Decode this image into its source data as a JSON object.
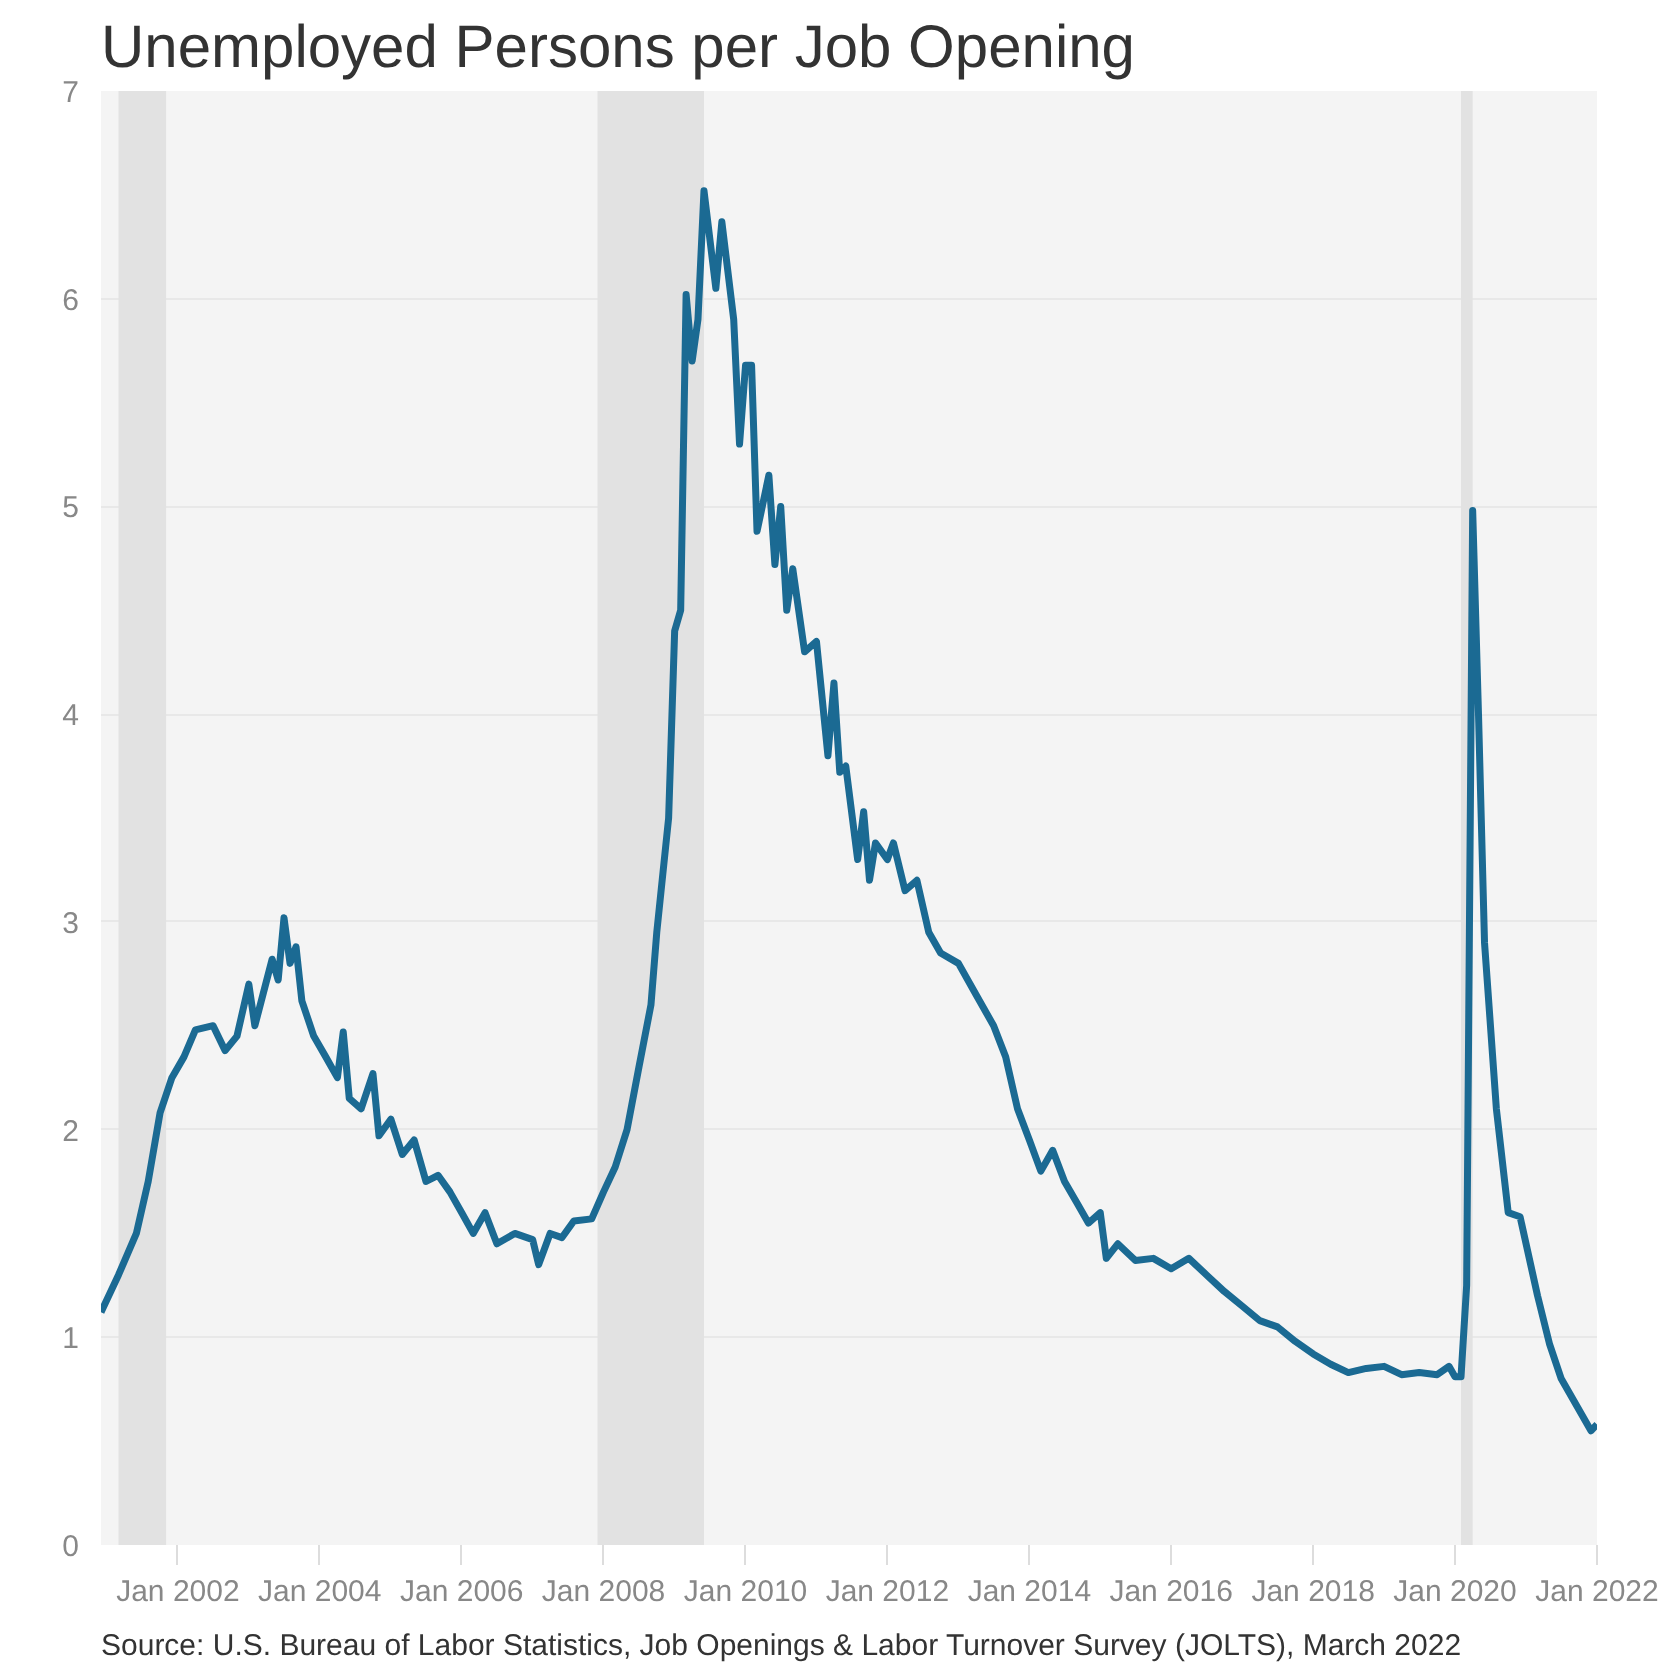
{
  "chart_data": {
    "type": "line",
    "title": "Unemployed Persons per Job Opening",
    "annotations": [
      "Source: U.S. Bureau of Labor Statistics, Job Openings & Labor Turnover Survey (JOLTS), March 2022"
    ],
    "x": [
      "2000-12",
      "2001-03",
      "2001-06",
      "2001-08",
      "2001-10",
      "2001-12",
      "2002-02",
      "2002-04",
      "2002-07",
      "2002-09",
      "2002-11",
      "2003-01",
      "2003-02",
      "2003-05",
      "2003-06",
      "2003-07",
      "2003-08",
      "2003-09",
      "2003-10",
      "2003-12",
      "2004-02",
      "2004-04",
      "2004-05",
      "2004-06",
      "2004-08",
      "2004-10",
      "2004-11",
      "2005-01",
      "2005-03",
      "2005-05",
      "2005-07",
      "2005-09",
      "2005-11",
      "2006-01",
      "2006-03",
      "2006-05",
      "2006-07",
      "2006-10",
      "2007-01",
      "2007-02",
      "2007-04",
      "2007-06",
      "2007-08",
      "2007-11",
      "2008-01",
      "2008-03",
      "2008-05",
      "2008-07",
      "2008-09",
      "2008-10",
      "2008-12",
      "2009-01",
      "2009-02",
      "2009-03",
      "2009-04",
      "2009-05",
      "2009-06",
      "2009-08",
      "2009-09",
      "2009-11",
      "2009-12",
      "2010-01",
      "2010-02",
      "2010-03",
      "2010-05",
      "2010-06",
      "2010-07",
      "2010-08",
      "2010-09",
      "2010-11",
      "2011-01",
      "2011-03",
      "2011-04",
      "2011-05",
      "2011-06",
      "2011-08",
      "2011-09",
      "2011-10",
      "2011-11",
      "2012-01",
      "2012-02",
      "2012-04",
      "2012-06",
      "2012-08",
      "2012-10",
      "2013-01",
      "2013-04",
      "2013-07",
      "2013-09",
      "2013-11",
      "2014-01",
      "2014-03",
      "2014-05",
      "2014-07",
      "2014-09",
      "2014-11",
      "2015-01",
      "2015-02",
      "2015-04",
      "2015-07",
      "2015-10",
      "2016-01",
      "2016-04",
      "2016-07",
      "2016-10",
      "2017-01",
      "2017-04",
      "2017-07",
      "2017-10",
      "2018-01",
      "2018-04",
      "2018-07",
      "2018-10",
      "2019-01",
      "2019-04",
      "2019-07",
      "2019-10",
      "2019-12",
      "2020-01",
      "2020-02",
      "2020-03",
      "2020-04",
      "2020-05",
      "2020-06",
      "2020-08",
      "2020-10",
      "2020-12",
      "2021-03",
      "2021-05",
      "2021-07",
      "2021-10",
      "2021-12",
      "2022-01"
    ],
    "series": [
      {
        "color": "#1b6a93",
        "values": [
          1.12,
          1.3,
          1.5,
          1.75,
          2.08,
          2.25,
          2.35,
          2.48,
          2.5,
          2.38,
          2.45,
          2.7,
          2.5,
          2.82,
          2.72,
          3.02,
          2.8,
          2.88,
          2.62,
          2.45,
          2.35,
          2.25,
          2.47,
          2.15,
          2.1,
          2.27,
          1.97,
          2.05,
          1.88,
          1.95,
          1.75,
          1.78,
          1.7,
          1.6,
          1.5,
          1.6,
          1.45,
          1.5,
          1.47,
          1.35,
          1.5,
          1.48,
          1.56,
          1.57,
          1.7,
          1.82,
          2.0,
          2.3,
          2.6,
          2.95,
          3.5,
          4.4,
          4.5,
          6.02,
          5.7,
          5.9,
          6.52,
          6.05,
          6.37,
          5.9,
          5.3,
          5.68,
          5.68,
          4.88,
          5.15,
          4.72,
          5.0,
          4.5,
          4.7,
          4.3,
          4.35,
          3.8,
          4.15,
          3.72,
          3.75,
          3.3,
          3.53,
          3.2,
          3.38,
          3.3,
          3.38,
          3.15,
          3.2,
          2.95,
          2.85,
          2.8,
          2.65,
          2.5,
          2.35,
          2.1,
          1.95,
          1.8,
          1.9,
          1.75,
          1.65,
          1.55,
          1.6,
          1.38,
          1.45,
          1.37,
          1.38,
          1.33,
          1.38,
          1.3,
          1.22,
          1.15,
          1.08,
          1.05,
          0.98,
          0.92,
          0.87,
          0.83,
          0.85,
          0.86,
          0.82,
          0.83,
          0.82,
          0.86,
          0.81,
          0.81,
          1.25,
          4.98,
          4.0,
          2.9,
          2.1,
          1.6,
          1.58,
          1.2,
          0.97,
          0.8,
          0.65,
          0.55,
          0.58
        ]
      }
    ],
    "xlim": [
      "2000-12",
      "2022-01"
    ],
    "xticks": [
      {
        "value": "2002-01",
        "label": "Jan 2002"
      },
      {
        "value": "2004-01",
        "label": "Jan 2004"
      },
      {
        "value": "2006-01",
        "label": "Jan 2006"
      },
      {
        "value": "2008-01",
        "label": "Jan 2008"
      },
      {
        "value": "2010-01",
        "label": "Jan 2010"
      },
      {
        "value": "2012-01",
        "label": "Jan 2012"
      },
      {
        "value": "2014-01",
        "label": "Jan 2014"
      },
      {
        "value": "2016-01",
        "label": "Jan 2016"
      },
      {
        "value": "2018-01",
        "label": "Jan 2018"
      },
      {
        "value": "2020-01",
        "label": "Jan 2020"
      },
      {
        "value": "2022-01",
        "label": "Jan 2022"
      }
    ],
    "ylim": [
      0,
      7
    ],
    "yticks": [
      0,
      1,
      2,
      3,
      4,
      5,
      6,
      7
    ],
    "bands": [
      {
        "axis": "x",
        "from": "2001-03",
        "to": "2001-11",
        "color": "#e2e2e2"
      },
      {
        "axis": "x",
        "from": "2007-12",
        "to": "2009-06",
        "color": "#e2e2e2"
      },
      {
        "axis": "x",
        "from": "2020-02",
        "to": "2020-04",
        "color": "#e2e2e2"
      }
    ],
    "grid": "y",
    "marker": "none",
    "line_style": "solid"
  }
}
